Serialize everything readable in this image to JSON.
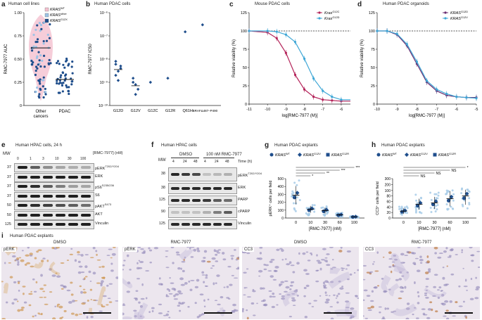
{
  "panels": {
    "a": {
      "label": "a",
      "title": "Human cell lines",
      "ylabel": "RMC-7977 AUC",
      "yticks": [
        "0",
        "0.25",
        "0.50",
        "0.75",
        "1.00"
      ],
      "xcats": [
        "Other cancers",
        "PDAC"
      ],
      "legend": [
        "KRASWT",
        "KRASother",
        "KRASG12X"
      ],
      "legend_parts": [
        [
          "KRAS",
          "WT"
        ],
        [
          "KRAS",
          "other"
        ],
        [
          "KRAS",
          "G12X"
        ]
      ],
      "colors": {
        "wt": "#f4c0cf",
        "other": "#9dc3e6",
        "g12x": "#1f4e8c"
      }
    },
    "b": {
      "label": "b",
      "title": "Human PDAC cells",
      "ylabel": "RMC-7977 IC50",
      "yticks": [
        "10⁻¹⁰",
        "10⁻⁹",
        "10⁻⁸",
        "10⁻⁷",
        "10⁻⁶"
      ],
      "xcats": [
        "G12D",
        "G12V",
        "G12C",
        "G12R",
        "Q61H",
        "BRAFΔ487–P490"
      ]
    },
    "c": {
      "label": "c",
      "title": "Mouse PDAC cells",
      "ylabel": "Relative viability (%)",
      "xlabel": "log[RMC-7977 (M)]",
      "xticks": [
        "-11",
        "-10",
        "-9",
        "-8",
        "-7",
        "-6"
      ],
      "yticks": [
        "0",
        "25",
        "50",
        "75",
        "100",
        "125"
      ],
      "legend": [
        {
          "name": "KrasG12C",
          "color": "#b4245a"
        },
        {
          "name": "KrasG12D",
          "color": "#3fa7d6"
        }
      ],
      "legend_parts": [
        [
          "Kras",
          "G12C"
        ],
        [
          "Kras",
          "G12D"
        ]
      ]
    },
    "d": {
      "label": "d",
      "title": "Human PDAC organoids",
      "ylabel": "Relative viability (%)",
      "xlabel": "log[RMC-7977 (M)]",
      "xticks": [
        "-10",
        "-9",
        "-8",
        "-7",
        "-6",
        "-5"
      ],
      "yticks": [
        "0",
        "25",
        "50",
        "75",
        "100",
        "125"
      ],
      "legend": [
        {
          "name": "KRASG12D",
          "color": "#6a2c70"
        },
        {
          "name": "KRASG12V",
          "color": "#3fa7d6"
        }
      ],
      "legend_parts": [
        [
          "KRAS",
          "G12D"
        ],
        [
          "KRAS",
          "G12V"
        ]
      ]
    },
    "e": {
      "label": "e",
      "title": "Human HPAC cells, 24 h",
      "mw": "MW",
      "conc_header": "[RMC-7977] (nM)",
      "conc": [
        "0",
        "1",
        "3",
        "10",
        "30",
        "100"
      ],
      "bands": [
        {
          "mw": "37",
          "name": "pERK",
          "sup": "T202/Y204"
        },
        {
          "mw": "37",
          "name": "ERK",
          "sup": ""
        },
        {
          "mw": "37",
          "name": "pS6",
          "sup": "S235/236"
        },
        {
          "mw": "37",
          "name": "S6",
          "sup": ""
        },
        {
          "mw": "50",
          "name": "pAKT",
          "sup": "S473"
        },
        {
          "mw": "50",
          "name": "AKT",
          "sup": ""
        },
        {
          "mw": "125",
          "name": "Vinculin",
          "sup": ""
        }
      ]
    },
    "f": {
      "label": "f",
      "title": "Human HPAC cells",
      "mw": "MW",
      "groups": [
        "DMSO",
        "100 nM RMC-7977"
      ],
      "time_header": "Time (h)",
      "times": [
        "4",
        "24",
        "48",
        "4",
        "24",
        "48"
      ],
      "bands": [
        {
          "mw": "38",
          "name": "pERK",
          "sup": "T202/Y204"
        },
        {
          "mw": "38",
          "name": "ERK",
          "sup": ""
        },
        {
          "mw": "125",
          "name": "PARP",
          "sup": ""
        },
        {
          "mw": "90",
          "name": "cPARP",
          "sup": ""
        },
        {
          "mw": "125",
          "name": "Vinculin",
          "sup": ""
        }
      ]
    },
    "g": {
      "label": "g",
      "title": "Human PDAC explants",
      "ylabel": "pERK⁺ cells per field",
      "xlabel": "[RMC-7977] (nM)",
      "xticks": [
        "0",
        "10",
        "30",
        "60",
        "100"
      ],
      "yticks": [
        "0",
        "100",
        "200",
        "300",
        "400",
        "500"
      ],
      "legend_parts": [
        [
          "KRAS",
          "WT"
        ],
        [
          "KRAS",
          "G12V"
        ],
        [
          "KRAS",
          "G12R"
        ]
      ],
      "sig": [
        "***",
        "***",
        "**",
        "*"
      ]
    },
    "h": {
      "label": "h",
      "title": "Human PDAC explants",
      "ylabel": "CC3⁺ cells per field",
      "xlabel": "[RMC-7977] (nM)",
      "xticks": [
        "0",
        "10",
        "30",
        "60",
        "100"
      ],
      "yticks": [
        "0",
        "20",
        "40",
        "60",
        "80",
        "100",
        "200",
        "300"
      ],
      "legend_parts": [
        [
          "KRAS",
          "WT"
        ],
        [
          "KRAS",
          "G12V"
        ],
        [
          "KRAS",
          "G12R"
        ]
      ],
      "sig": [
        "*",
        "NS",
        "NS",
        "NS"
      ]
    },
    "i": {
      "label": "i",
      "title": "Human PDAC explants",
      "images": [
        {
          "tag": "pERK",
          "title": "DMSO"
        },
        {
          "tag": "pERK",
          "title": "RMC-7977"
        },
        {
          "tag": "CC3",
          "title": "DMSO"
        },
        {
          "tag": "CC3",
          "title": "RMC-7977"
        }
      ]
    }
  },
  "chart_data": [
    {
      "panel": "a",
      "type": "scatter",
      "ylabel": "RMC-7977 AUC",
      "ylim": [
        0,
        1.0
      ],
      "categories": [
        "Other cancers",
        "PDAC"
      ],
      "medians": [
        0.62,
        0.28
      ]
    },
    {
      "panel": "b",
      "type": "scatter",
      "ylabel": "RMC-7977 IC50",
      "yscale": "log",
      "categories": [
        "G12D",
        "G12V",
        "G12C",
        "G12R",
        "Q61H",
        "BRAFΔ487–P490"
      ],
      "values": [
        [
          2e-09,
          3e-09,
          5e-09,
          8e-09,
          1.2e-09,
          4e-09,
          6e-09
        ],
        [
          1e-09,
          8e-10,
          5e-10,
          1.5e-09,
          3e-10
        ],
        [
          1e-09
        ],
        [
          1.5e-09
        ],
        [
          1.5e-07
        ],
        [
          3e-07
        ]
      ]
    },
    {
      "panel": "c",
      "type": "line",
      "xlabel": "log[RMC-7977 (M)]",
      "ylabel": "Relative viability (%)",
      "xlim": [
        -11,
        -5.5
      ],
      "ylim": [
        0,
        125
      ],
      "series": [
        {
          "name": "KrasG12C",
          "x": [
            -11,
            -10,
            -9.5,
            -9,
            -8.5,
            -8,
            -7.5,
            -7,
            -6.5,
            -6
          ],
          "y": [
            100,
            98,
            90,
            70,
            40,
            20,
            10,
            6,
            5,
            4
          ]
        },
        {
          "name": "KrasG12D",
          "x": [
            -11,
            -10,
            -9.5,
            -9,
            -8.5,
            -8,
            -7.5,
            -7,
            -6.5,
            -6
          ],
          "y": [
            100,
            100,
            99,
            95,
            85,
            62,
            35,
            18,
            10,
            6
          ]
        }
      ]
    },
    {
      "panel": "d",
      "type": "line",
      "xlabel": "log[RMC-7977 (M)]",
      "ylabel": "Relative viability (%)",
      "xlim": [
        -10,
        -5
      ],
      "ylim": [
        0,
        125
      ],
      "series": [
        {
          "name": "KRASG12D",
          "x": [
            -10,
            -9.5,
            -9,
            -8.5,
            -8,
            -7.5,
            -7,
            -6.5,
            -6,
            -5.5,
            -5
          ],
          "y": [
            100,
            100,
            95,
            80,
            55,
            30,
            18,
            12,
            10,
            9,
            9
          ]
        },
        {
          "name": "KRASG12V",
          "x": [
            -10,
            -9.5,
            -9,
            -8.5,
            -8,
            -7.5,
            -7,
            -6.5,
            -6,
            -5.5,
            -5
          ],
          "y": [
            100,
            100,
            96,
            82,
            58,
            32,
            20,
            14,
            10,
            9,
            8
          ]
        }
      ]
    },
    {
      "panel": "g",
      "type": "scatter",
      "xlabel": "[RMC-7977] (nM)",
      "ylabel": "pERK⁺ cells per field",
      "ylim": [
        0,
        500
      ],
      "categories": [
        "0",
        "10",
        "30",
        "60",
        "100"
      ],
      "means": [
        290,
        110,
        95,
        40,
        15
      ]
    },
    {
      "panel": "h",
      "type": "scatter",
      "xlabel": "[RMC-7977] (nM)",
      "ylabel": "CC3⁺ cells per field",
      "ylim": [
        0,
        300
      ],
      "categories": [
        "0",
        "10",
        "30",
        "60",
        "100"
      ],
      "means": [
        25,
        50,
        55,
        70,
        80
      ]
    }
  ]
}
